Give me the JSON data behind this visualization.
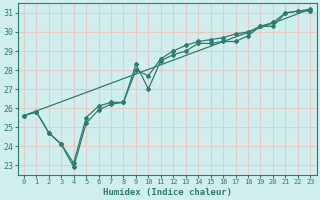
{
  "xlabel": "Humidex (Indice chaleur)",
  "bg_color": "#d0eeee",
  "grid_color": "#e8c8c8",
  "line_color": "#2d7d6b",
  "spine_color": "#2d7d6b",
  "xlim": [
    -0.5,
    23.5
  ],
  "ylim": [
    22.5,
    31.5
  ],
  "yticks": [
    23,
    24,
    25,
    26,
    27,
    28,
    29,
    30,
    31
  ],
  "xticks": [
    0,
    1,
    2,
    3,
    4,
    5,
    6,
    7,
    8,
    9,
    10,
    11,
    12,
    13,
    14,
    15,
    16,
    17,
    18,
    19,
    20,
    21,
    22,
    23
  ],
  "line1_x": [
    0,
    1,
    2,
    3,
    4,
    5,
    6,
    7,
    8,
    9,
    10,
    11,
    12,
    13,
    14,
    15,
    16,
    17,
    18,
    19,
    20,
    21,
    22,
    23
  ],
  "line1_y": [
    25.6,
    25.8,
    24.7,
    24.1,
    22.9,
    25.2,
    25.9,
    26.2,
    26.3,
    28.3,
    27.0,
    28.5,
    28.8,
    29.0,
    29.4,
    29.4,
    29.5,
    29.5,
    29.8,
    30.3,
    30.3,
    31.0,
    31.1,
    31.1
  ],
  "line2_x": [
    0,
    1,
    2,
    3,
    4,
    5,
    6,
    7,
    8,
    9,
    10,
    11,
    12,
    13,
    14,
    15,
    16,
    17,
    18,
    19,
    20,
    21,
    22,
    23
  ],
  "line2_y": [
    25.6,
    25.8,
    24.7,
    24.1,
    23.1,
    25.5,
    26.1,
    26.3,
    26.3,
    28.0,
    27.7,
    28.6,
    29.0,
    29.3,
    29.5,
    29.6,
    29.7,
    29.9,
    30.0,
    30.3,
    30.5,
    31.0,
    31.1,
    31.2
  ],
  "line3_x": [
    0,
    23
  ],
  "line3_y": [
    25.6,
    31.2
  ]
}
